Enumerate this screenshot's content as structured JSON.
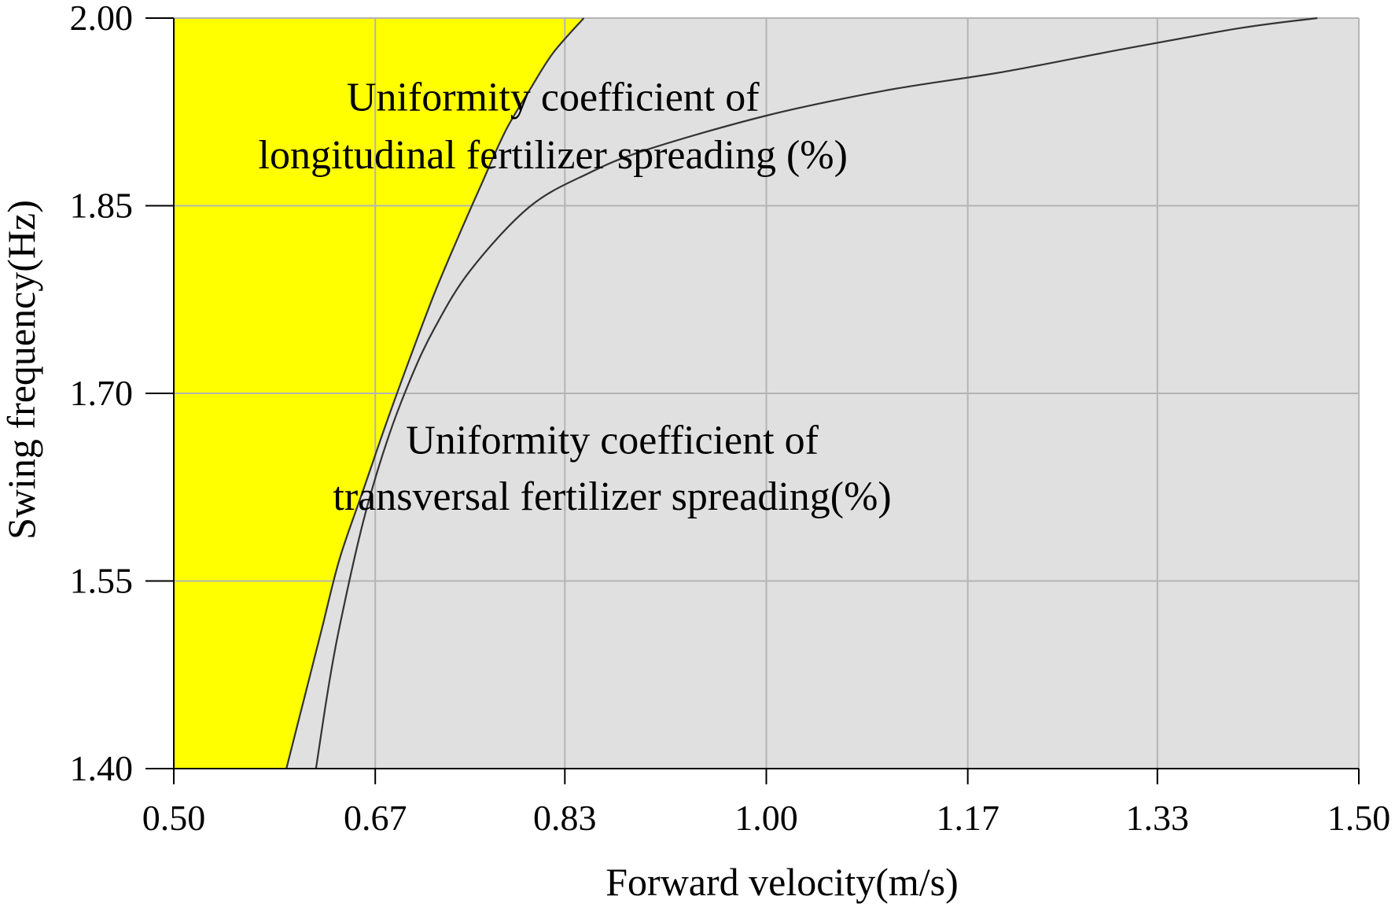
{
  "chart_data": {
    "type": "area",
    "title": "",
    "xlabel": "Forward velocity(m/s)",
    "ylabel": "Swing frequency(Hz)",
    "xlim": [
      0.5,
      1.5
    ],
    "ylim": [
      1.4,
      2.0
    ],
    "xticks": [
      0.5,
      0.67,
      0.83,
      1.0,
      1.17,
      1.33,
      1.5
    ],
    "xtick_labels": [
      "0.50",
      "0.67",
      "0.83",
      "1.00",
      "1.17",
      "1.33",
      "1.50"
    ],
    "yticks": [
      1.4,
      1.55,
      1.7,
      1.85,
      2.0
    ],
    "ytick_labels": [
      "1.40",
      "1.55",
      "1.70",
      "1.85",
      "2.00"
    ],
    "grid": true,
    "series": [
      {
        "label": "Uniformity coefficient of longitudinal fertilizer spreading (%)",
        "label_lines": [
          "Uniformity coefficient of",
          "longitudinal fertilizer spreading (%)"
        ],
        "x": [
          0.595,
          0.61,
          0.625,
          0.64,
          0.66,
          0.68,
          0.7,
          0.72,
          0.74,
          0.76,
          0.78,
          0.8,
          0.82,
          0.846
        ],
        "y": [
          1.4,
          1.456,
          1.512,
          1.568,
          1.623,
          1.678,
          1.73,
          1.78,
          1.825,
          1.868,
          1.91,
          1.942,
          1.972,
          2.0
        ]
      },
      {
        "label": "Uniformity coefficient of transversal fertilizer spreading(%)",
        "label_lines": [
          "Uniformity coefficient of",
          "transversal fertilizer spreading(%)"
        ],
        "x": [
          0.62,
          0.63,
          0.64,
          0.66,
          0.68,
          0.7,
          0.72,
          0.75,
          0.8,
          0.85,
          0.9,
          1.0,
          1.1,
          1.2,
          1.3,
          1.4,
          1.465
        ],
        "y": [
          1.4,
          1.462,
          1.514,
          1.598,
          1.662,
          1.712,
          1.752,
          1.798,
          1.849,
          1.876,
          1.895,
          1.922,
          1.942,
          1.957,
          1.975,
          1.992,
          2.0
        ]
      }
    ],
    "feasible_region": "yellow region left of the longitudinal contour"
  },
  "colors": {
    "plot_background": "#e0e0e0",
    "feasible_fill": "#ffff00",
    "grid": "#b4b4b4",
    "contour": "#333333",
    "axis": "#000000"
  }
}
